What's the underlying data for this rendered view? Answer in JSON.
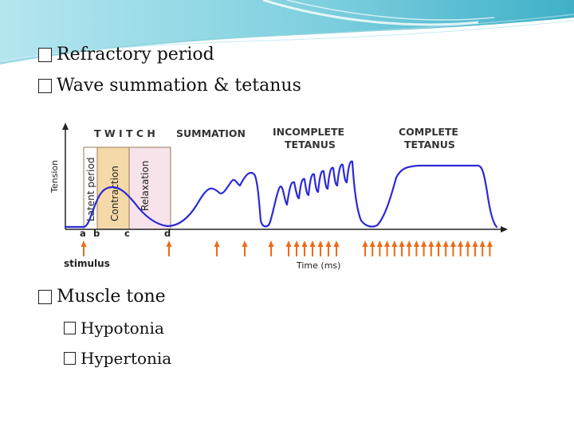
{
  "bullets": {
    "refractory": "Refractory period",
    "wave_summation": "Wave summation & tetanus",
    "muscle_tone": "Muscle tone",
    "hypotonia": "Hypotonia",
    "hypertonia": "Hypertonia"
  },
  "diagram": {
    "headers": {
      "twitch": "T W I T C H",
      "summation": "SUMMATION",
      "incomplete_1": "INCOMPLETE",
      "incomplete_2": "TETANUS",
      "complete_1": "COMPLETE",
      "complete_2": "TETANUS"
    },
    "phases": {
      "latent": "Latent period",
      "contraction": "Contraction",
      "relaxation": "Relaxation"
    },
    "y_label": "Tension",
    "x_label": "Time (ms)",
    "stimulus_label": "stimulus",
    "markers": {
      "a": "a",
      "b": "b",
      "c": "c",
      "d": "d"
    },
    "colors": {
      "curve": "#2a2ad6",
      "arrows": "#f06a1a",
      "contraction_fill": "#f5d9a8",
      "relaxation_fill": "#f7e3ea"
    }
  }
}
